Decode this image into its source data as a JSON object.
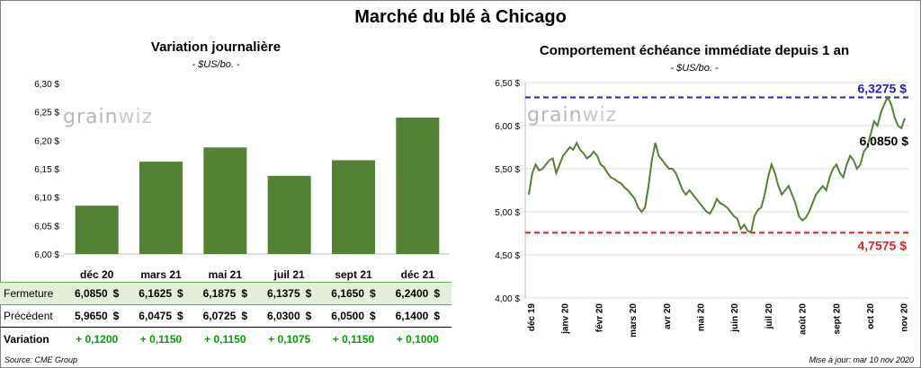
{
  "title": "Marché du blé à Chicago",
  "logo": {
    "grain": "grain",
    "wiz": "wiz"
  },
  "source": "Source: CME Group",
  "updated": "Mise à jour: mar 10 nov 2020",
  "currency_symbol": "$",
  "colors": {
    "bar": "#548235",
    "line": "#548235",
    "high": "#1f1fbf",
    "low": "#e81f1f",
    "variation": "#00a000",
    "highlight_row": "#e2efda"
  },
  "table": {
    "rows": [
      {
        "label": "Fermeture",
        "values": [
          "6,0850",
          "6,1625",
          "6,1875",
          "6,1375",
          "6,1650",
          "6,2400"
        ]
      },
      {
        "label": "Précédent",
        "values": [
          "5,9650",
          "6,0475",
          "6,0725",
          "6,0300",
          "6,0500",
          "6,1400"
        ]
      },
      {
        "label": "Variation",
        "values": [
          "+ 0,1200",
          "+ 0,1150",
          "+ 0,1150",
          "+ 0,1075",
          "+ 0,1150",
          "+ 0,1000"
        ]
      }
    ]
  },
  "chart_data": [
    {
      "type": "bar",
      "title": "Variation journalière",
      "subtitle": "- $US/bo. -",
      "categories": [
        "déc 20",
        "mars 21",
        "mai 21",
        "juil 21",
        "sept 21",
        "déc 21"
      ],
      "values": [
        6.085,
        6.1625,
        6.1875,
        6.1375,
        6.165,
        6.24
      ],
      "ylim": [
        6.0,
        6.3
      ],
      "yticks": [
        "6,00 $",
        "6,05 $",
        "6,10 $",
        "6,15 $",
        "6,20 $",
        "6,25 $",
        "6,30 $"
      ],
      "grid": false
    },
    {
      "type": "line",
      "title": "Comportement échéance immédiate depuis 1 an",
      "subtitle": "- $US/bo. -",
      "ylim": [
        4.0,
        6.5
      ],
      "yticks": [
        "4,00 $",
        "4,50 $",
        "5,00 $",
        "5,50 $",
        "6,00 $",
        "6,50 $"
      ],
      "xticks": [
        "déc 19",
        "janv 20",
        "févr 20",
        "mars 20",
        "avr 20",
        "mai 20",
        "juin 20",
        "juil 20",
        "août 20",
        "sept 20",
        "oct 20",
        "nov 20"
      ],
      "high": {
        "value": 6.3275,
        "label": "6,3275 $"
      },
      "low": {
        "value": 4.7575,
        "label": "4,7575 $"
      },
      "last": {
        "value": 6.085,
        "label": "6,0850 $"
      },
      "values": [
        5.2,
        5.45,
        5.55,
        5.48,
        5.5,
        5.55,
        5.6,
        5.62,
        5.45,
        5.55,
        5.65,
        5.7,
        5.75,
        5.72,
        5.8,
        5.72,
        5.68,
        5.62,
        5.65,
        5.7,
        5.65,
        5.55,
        5.52,
        5.45,
        5.4,
        5.38,
        5.35,
        5.33,
        5.28,
        5.25,
        5.2,
        5.15,
        5.05,
        5.0,
        5.05,
        5.3,
        5.6,
        5.8,
        5.65,
        5.6,
        5.55,
        5.5,
        5.5,
        5.45,
        5.35,
        5.25,
        5.2,
        5.25,
        5.2,
        5.15,
        5.1,
        5.05,
        5.0,
        4.98,
        5.05,
        5.15,
        5.1,
        5.08,
        5.05,
        5.0,
        4.95,
        4.92,
        4.8,
        4.85,
        4.78,
        4.76,
        4.95,
        5.02,
        5.05,
        5.2,
        5.4,
        5.55,
        5.45,
        5.3,
        5.2,
        5.25,
        5.3,
        5.2,
        5.1,
        4.95,
        4.9,
        4.93,
        5.0,
        5.1,
        5.2,
        5.25,
        5.3,
        5.25,
        5.4,
        5.5,
        5.55,
        5.45,
        5.4,
        5.55,
        5.65,
        5.6,
        5.5,
        5.55,
        5.7,
        5.75,
        5.9,
        6.05,
        6.0,
        6.15,
        6.25,
        6.33,
        6.25,
        6.1,
        6.0,
        5.97,
        6.085
      ]
    }
  ]
}
